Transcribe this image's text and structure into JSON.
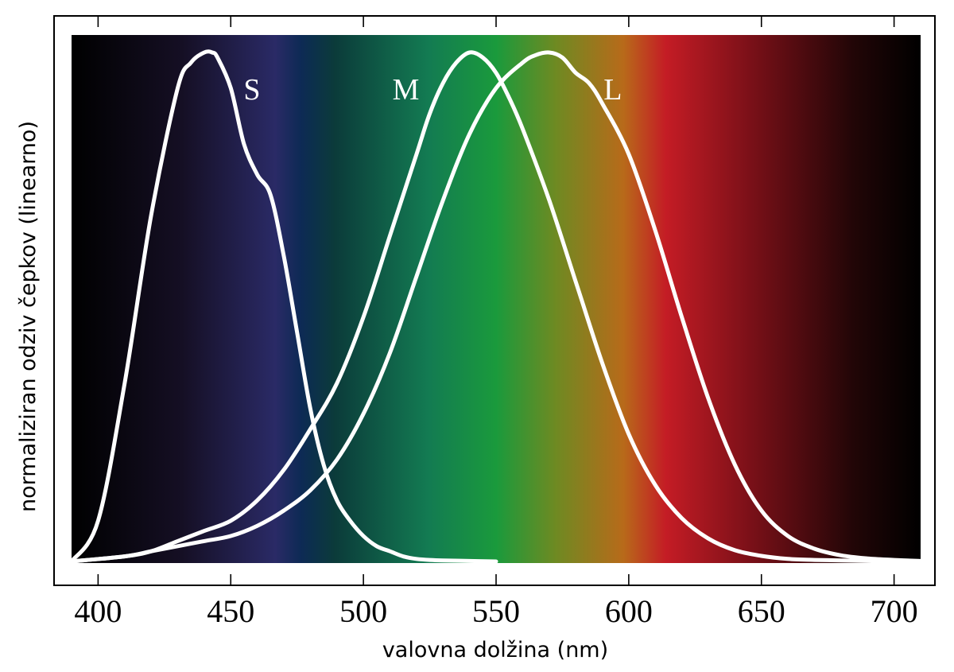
{
  "chart_data": {
    "type": "line",
    "xlabel": "valovna dolžina (nm)",
    "ylabel": "normaliziran odziv čepkov (linearno)",
    "xlim": [
      390,
      710
    ],
    "ylim": [
      0,
      1
    ],
    "x_ticks": [
      400,
      450,
      500,
      550,
      600,
      650,
      700
    ],
    "y_ticks_shown": false,
    "background": "visible light spectrum (black at ends, violet-blue-green-yellow-red across wavelengths)",
    "spectrum_colors": [
      "#000000",
      "#150f24",
      "#2a2a66",
      "#0d2a55",
      "#0b3b3a",
      "#137b52",
      "#1a9a3c",
      "#6e8a22",
      "#b86a1a",
      "#c41c25",
      "#7a1018",
      "#220607",
      "#000000"
    ],
    "curve_color": "#ffffff",
    "series": [
      {
        "name": "S",
        "x": [
          390,
          400,
          410,
          420,
          430,
          435,
          440,
          443,
          445,
          450,
          455,
          460,
          465,
          470,
          475,
          480,
          485,
          490,
          495,
          500,
          505,
          510,
          515,
          520,
          525,
          530,
          540,
          550
        ],
        "values": [
          0.0,
          0.08,
          0.35,
          0.68,
          0.93,
          0.98,
          1.0,
          1.0,
          0.99,
          0.93,
          0.82,
          0.76,
          0.72,
          0.6,
          0.45,
          0.3,
          0.19,
          0.12,
          0.08,
          0.05,
          0.03,
          0.02,
          0.01,
          0.005,
          0.003,
          0.002,
          0.001,
          0.0
        ]
      },
      {
        "name": "M",
        "x": [
          390,
          410,
          420,
          430,
          440,
          450,
          460,
          470,
          480,
          490,
          500,
          510,
          520,
          525,
          530,
          535,
          540,
          545,
          550,
          555,
          560,
          570,
          580,
          590,
          600,
          610,
          620,
          630,
          640,
          650,
          660,
          670,
          680,
          690,
          700,
          710
        ],
        "values": [
          0.0,
          0.01,
          0.02,
          0.04,
          0.06,
          0.08,
          0.12,
          0.18,
          0.26,
          0.35,
          0.48,
          0.64,
          0.8,
          0.88,
          0.94,
          0.98,
          1.0,
          0.99,
          0.96,
          0.91,
          0.85,
          0.71,
          0.55,
          0.39,
          0.25,
          0.15,
          0.085,
          0.045,
          0.022,
          0.011,
          0.005,
          0.003,
          0.002,
          0.001,
          0.0,
          0.0
        ]
      },
      {
        "name": "L",
        "x": [
          390,
          410,
          420,
          430,
          440,
          450,
          460,
          470,
          480,
          490,
          500,
          510,
          520,
          530,
          540,
          550,
          560,
          565,
          570,
          575,
          580,
          585,
          590,
          600,
          610,
          620,
          630,
          640,
          650,
          660,
          670,
          680,
          690,
          700,
          710
        ],
        "values": [
          0.0,
          0.01,
          0.02,
          0.03,
          0.04,
          0.05,
          0.07,
          0.1,
          0.14,
          0.2,
          0.29,
          0.41,
          0.56,
          0.71,
          0.84,
          0.93,
          0.98,
          0.995,
          1.0,
          0.99,
          0.96,
          0.94,
          0.9,
          0.8,
          0.65,
          0.48,
          0.32,
          0.19,
          0.1,
          0.05,
          0.025,
          0.012,
          0.006,
          0.003,
          0.001
        ]
      }
    ],
    "series_label_anchor": [
      {
        "name": "S",
        "x": 458,
        "y": 0.93
      },
      {
        "name": "M",
        "x": 516,
        "y": 0.93
      },
      {
        "name": "L",
        "x": 594,
        "y": 0.93
      }
    ]
  }
}
